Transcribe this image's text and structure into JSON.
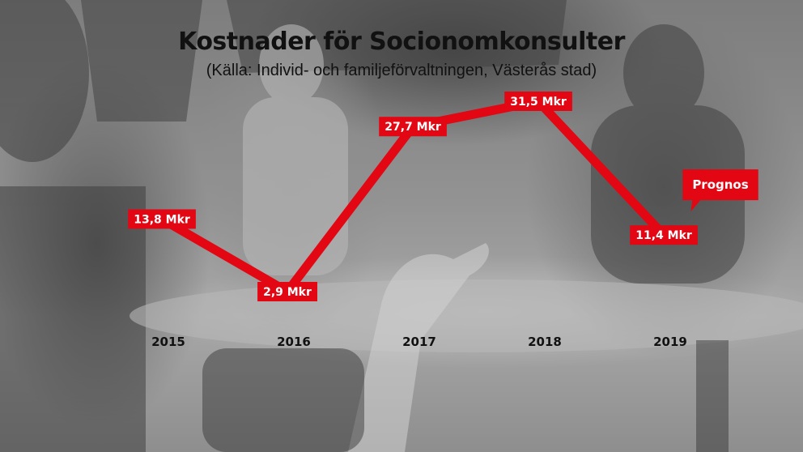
{
  "chart_data": {
    "type": "line",
    "title": "Kostnader för Socionomkonsulter",
    "subtitle": "(Källa: Individ- och familjeförvaltningen, Västerås stad)",
    "x": [
      "2015",
      "2016",
      "2017",
      "2018",
      "2019"
    ],
    "series": [
      {
        "values": [
          13.8,
          2.9,
          27.7,
          31.5,
          11.4
        ]
      }
    ],
    "data_labels": [
      "13,8 Mkr",
      "2,9 Mkr",
      "27,7 Mkr",
      "31,5 Mkr",
      "11,4 Mkr"
    ],
    "annotations": [
      {
        "x": "2019",
        "text": "Prognos"
      }
    ],
    "ylim": [
      0,
      35
    ],
    "grid": false,
    "colors": {
      "line": "#e30613",
      "label_background": "#e30613",
      "label_text": "#ffffff",
      "axis_text": "#111111"
    }
  }
}
